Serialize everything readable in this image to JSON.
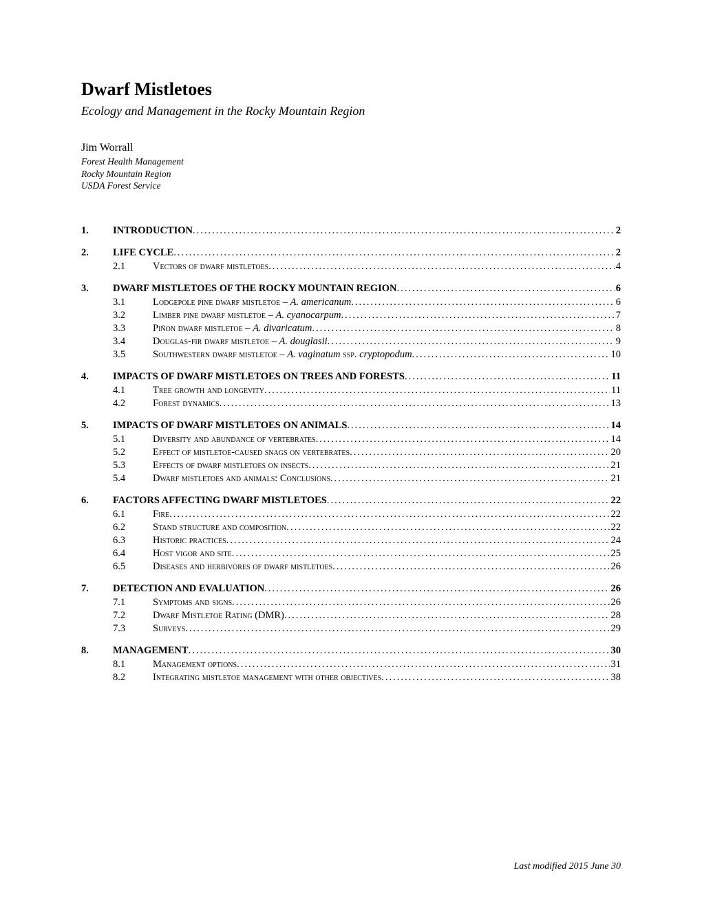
{
  "title": "Dwarf Mistletoes",
  "subtitle": "Ecology and Management in the Rocky Mountain Region",
  "author": "Jim Worrall",
  "affiliation": [
    "Forest Health Management",
    "Rocky Mountain Region",
    "USDA Forest Service"
  ],
  "footer": "Last modified 2015 June 30",
  "toc": [
    {
      "level": 1,
      "num": "1.",
      "label": "INTRODUCTION",
      "page": "2"
    },
    {
      "level": 1,
      "num": "2.",
      "label": "LIFE CYCLE",
      "page": "2"
    },
    {
      "level": 2,
      "num": "2.1",
      "label_sc": "Vectors of dwarf mistletoes",
      "page": "4"
    },
    {
      "level": 1,
      "num": "3.",
      "label": "DWARF MISTLETOES OF THE ROCKY MOUNTAIN REGION",
      "page": "6"
    },
    {
      "level": 2,
      "num": "3.1",
      "label_sc": "Lodgepole pine dwarf mistletoe – ",
      "label_it": "A. americanum",
      "page": "6"
    },
    {
      "level": 2,
      "num": "3.2",
      "label_sc": "Limber pine dwarf mistletoe – ",
      "label_it": "A. cyanocarpum",
      "page": "7"
    },
    {
      "level": 2,
      "num": "3.3",
      "label_sc": "Piñon dwarf mistletoe – ",
      "label_it": "A. divaricatum",
      "page": "8"
    },
    {
      "level": 2,
      "num": "3.4",
      "label_sc": "Douglas-fir dwarf mistletoe – ",
      "label_it": "A. douglasii",
      "page": "9"
    },
    {
      "level": 2,
      "num": "3.5",
      "label_sc": "Southwestern dwarf mistletoe – ",
      "label_it": "A. vaginatum",
      "label_sc2": " ssp. ",
      "label_it2": "cryptopodum",
      "page": "10"
    },
    {
      "level": 1,
      "num": "4.",
      "label": "IMPACTS OF DWARF MISTLETOES ON TREES AND FORESTS",
      "page": "11"
    },
    {
      "level": 2,
      "num": "4.1",
      "label_sc": "Tree growth and longevity",
      "page": "11"
    },
    {
      "level": 2,
      "num": "4.2",
      "label_sc": "Forest dynamics",
      "page": "13"
    },
    {
      "level": 1,
      "num": "5.",
      "label": "IMPACTS OF DWARF MISTLETOES ON ANIMALS",
      "page": "14"
    },
    {
      "level": 2,
      "num": "5.1",
      "label_sc": "Diversity and abundance of vertebrates",
      "page": "14"
    },
    {
      "level": 2,
      "num": "5.2",
      "label_sc": "Effect of mistletoe-caused snags on vertebrates",
      "page": "20"
    },
    {
      "level": 2,
      "num": "5.3",
      "label_sc": "Effects of dwarf mistletoes on insects",
      "page": "21"
    },
    {
      "level": 2,
      "num": "5.4",
      "label_sc": "Dwarf mistletoes and animals: Conclusions",
      "page": "21"
    },
    {
      "level": 1,
      "num": "6.",
      "label": "FACTORS AFFECTING DWARF MISTLETOES",
      "page": "22"
    },
    {
      "level": 2,
      "num": "6.1",
      "label_sc": "Fire",
      "page": "22"
    },
    {
      "level": 2,
      "num": "6.2",
      "label_sc": "Stand structure and composition",
      "page": "22"
    },
    {
      "level": 2,
      "num": "6.3",
      "label_sc": "Historic practices",
      "page": "24"
    },
    {
      "level": 2,
      "num": "6.4",
      "label_sc": "Host vigor and site",
      "page": "25"
    },
    {
      "level": 2,
      "num": "6.5",
      "label_sc": "Diseases and herbivores of dwarf mistletoes",
      "page": "26"
    },
    {
      "level": 1,
      "num": "7.",
      "label": "DETECTION AND EVALUATION",
      "page": "26"
    },
    {
      "level": 2,
      "num": "7.1",
      "label_sc": "Symptoms and signs",
      "page": "26"
    },
    {
      "level": 2,
      "num": "7.2",
      "label_sc": "Dwarf Mistletoe Rating (DMR)",
      "page": "28"
    },
    {
      "level": 2,
      "num": "7.3",
      "label_sc": "Surveys",
      "page": "29"
    },
    {
      "level": 1,
      "num": "8.",
      "label": "MANAGEMENT",
      "page": "30"
    },
    {
      "level": 2,
      "num": "8.1",
      "label_sc": "Management options",
      "page": "31"
    },
    {
      "level": 2,
      "num": "8.2",
      "label_sc": "Integrating mistletoe management with other objectives",
      "page": "38"
    }
  ]
}
